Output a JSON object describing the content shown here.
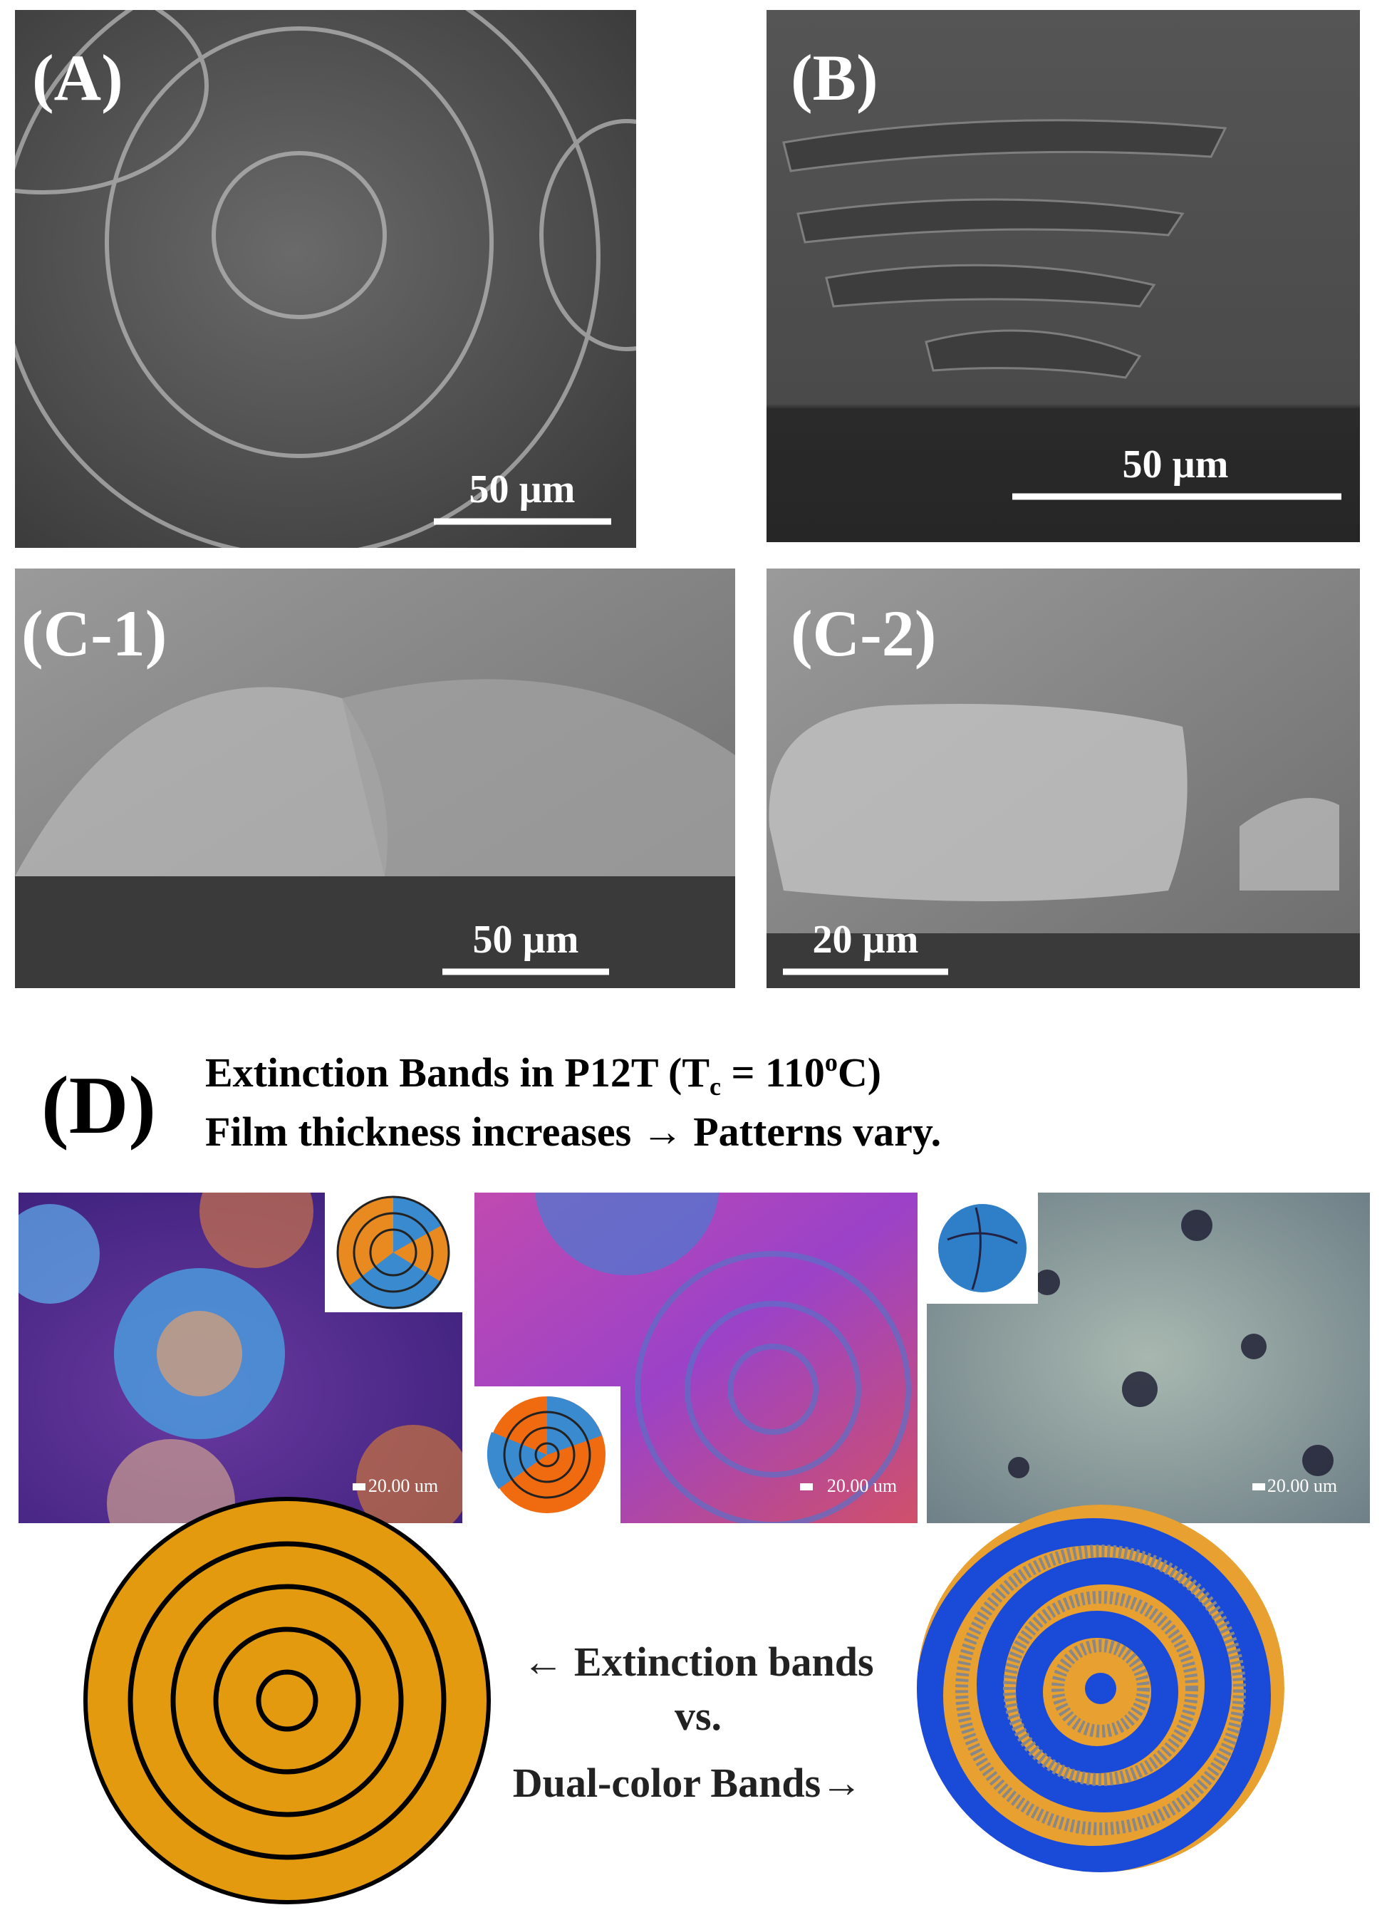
{
  "panels": {
    "a": {
      "label": "(A)",
      "scale": "50 µm"
    },
    "b": {
      "label": "(B)",
      "scale": "50 µm"
    },
    "c1": {
      "label": "(C-1)",
      "scale": "50 µm"
    },
    "c2": {
      "label": "(C-2)",
      "scale": "20 µm"
    }
  },
  "section_d": {
    "label": "(D)",
    "title_line1": {
      "before": "Extinction Bands in P12T (T",
      "sub": "c",
      "mid": " = 110",
      "sup": "o",
      "after": "C)"
    },
    "title_line2": "Film thickness increases → Patterns vary.",
    "micrograph_scales": [
      "20.00 um",
      "20.00 um",
      "20.00 um"
    ]
  },
  "legend": {
    "line1": "← Extinction bands",
    "line2": "vs.",
    "line3": "Dual-color Bands→"
  }
}
